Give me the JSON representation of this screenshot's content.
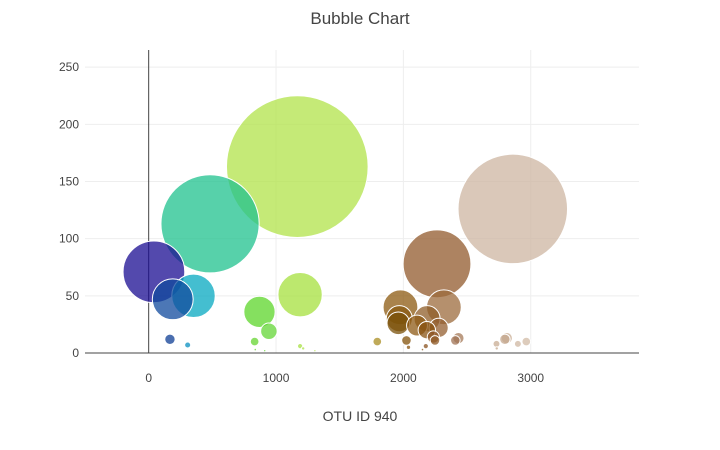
{
  "chart_data": {
    "type": "scatter",
    "title": "Bubble Chart",
    "xlabel": "OTU ID 940",
    "ylabel": "",
    "xlim": [
      -500,
      3850
    ],
    "ylim": [
      0,
      265
    ],
    "x_ticks": [
      0,
      1000,
      2000,
      3000
    ],
    "y_ticks": [
      0,
      50,
      100,
      150,
      200,
      250
    ],
    "grid": true,
    "legend": "none",
    "marker_opacity": 0.75,
    "points": [
      {
        "x": 1167,
        "y": 163,
        "r": 163,
        "color": "#b2e34a"
      },
      {
        "x": 2859,
        "y": 126,
        "r": 126,
        "color": "#cdb6a2"
      },
      {
        "x": 482,
        "y": 113,
        "r": 113,
        "color": "#1fc18e"
      },
      {
        "x": 2264,
        "y": 78,
        "r": 78,
        "color": "#915a2c"
      },
      {
        "x": 41,
        "y": 71,
        "r": 71,
        "color": "#1a0c91"
      },
      {
        "x": 1189,
        "y": 51,
        "r": 51,
        "color": "#a5e03e"
      },
      {
        "x": 352,
        "y": 50,
        "r": 50,
        "color": "#06a8c0"
      },
      {
        "x": 189,
        "y": 47,
        "r": 47,
        "color": "#104a9e"
      },
      {
        "x": 1977,
        "y": 40,
        "r": 40,
        "color": "#8c5a10"
      },
      {
        "x": 2318,
        "y": 40,
        "r": 40,
        "color": "#9c6b3c"
      },
      {
        "x": 870,
        "y": 36,
        "r": 36,
        "color": "#5cd62a"
      },
      {
        "x": 1968,
        "y": 30,
        "r": 30,
        "color": "#8a5a10"
      },
      {
        "x": 2186,
        "y": 30,
        "r": 30,
        "color": "#8f5d28"
      },
      {
        "x": 1960,
        "y": 26,
        "r": 26,
        "color": "#7a5008"
      },
      {
        "x": 2107,
        "y": 24,
        "r": 24,
        "color": "#8e5a14"
      },
      {
        "x": 2277,
        "y": 22,
        "r": 22,
        "color": "#945f30"
      },
      {
        "x": 2184,
        "y": 20,
        "r": 20,
        "color": "#8a5414"
      },
      {
        "x": 944,
        "y": 19,
        "r": 19,
        "color": "#63d636"
      },
      {
        "x": 2235,
        "y": 14,
        "r": 14,
        "color": "#8d5626"
      },
      {
        "x": 2812,
        "y": 13,
        "r": 13,
        "color": "#c9ad94"
      },
      {
        "x": 2432,
        "y": 13,
        "r": 13,
        "color": "#a57a58"
      },
      {
        "x": 167,
        "y": 12,
        "r": 12,
        "color": "#0e3d94"
      },
      {
        "x": 2797,
        "y": 12,
        "r": 12,
        "color": "#c4a78d"
      },
      {
        "x": 2024,
        "y": 11,
        "r": 11,
        "color": "#83510a"
      },
      {
        "x": 2408,
        "y": 11,
        "r": 11,
        "color": "#a07354"
      },
      {
        "x": 2248,
        "y": 11,
        "r": 11,
        "color": "#8d5722"
      },
      {
        "x": 1795,
        "y": 10,
        "r": 10,
        "color": "#a98d22"
      },
      {
        "x": 2965,
        "y": 10,
        "r": 10,
        "color": "#d2bba6"
      },
      {
        "x": 832,
        "y": 10,
        "r": 10,
        "color": "#66d430"
      },
      {
        "x": 2899,
        "y": 8,
        "r": 8,
        "color": "#cfb7a2"
      },
      {
        "x": 2731,
        "y": 8,
        "r": 8,
        "color": "#c8ac93"
      },
      {
        "x": 306,
        "y": 7,
        "r": 7,
        "color": "#0a8fc0"
      },
      {
        "x": 2176,
        "y": 6,
        "r": 6,
        "color": "#8b5320"
      },
      {
        "x": 1189,
        "y": 6,
        "r": 6,
        "color": "#a8e044"
      },
      {
        "x": 2040,
        "y": 5,
        "r": 5,
        "color": "#8a5410"
      },
      {
        "x": 1213,
        "y": 4,
        "r": 4,
        "color": "#aee24a"
      },
      {
        "x": 2733,
        "y": 4,
        "r": 4,
        "color": "#c6a98e"
      },
      {
        "x": 2150,
        "y": 3,
        "r": 3,
        "color": "#8a5518"
      },
      {
        "x": 837,
        "y": 3,
        "r": 3,
        "color": "#6ad634"
      },
      {
        "x": 1305,
        "y": 2,
        "r": 2,
        "color": "#b4e450"
      },
      {
        "x": 911,
        "y": 2,
        "r": 2,
        "color": "#60d532"
      }
    ]
  }
}
